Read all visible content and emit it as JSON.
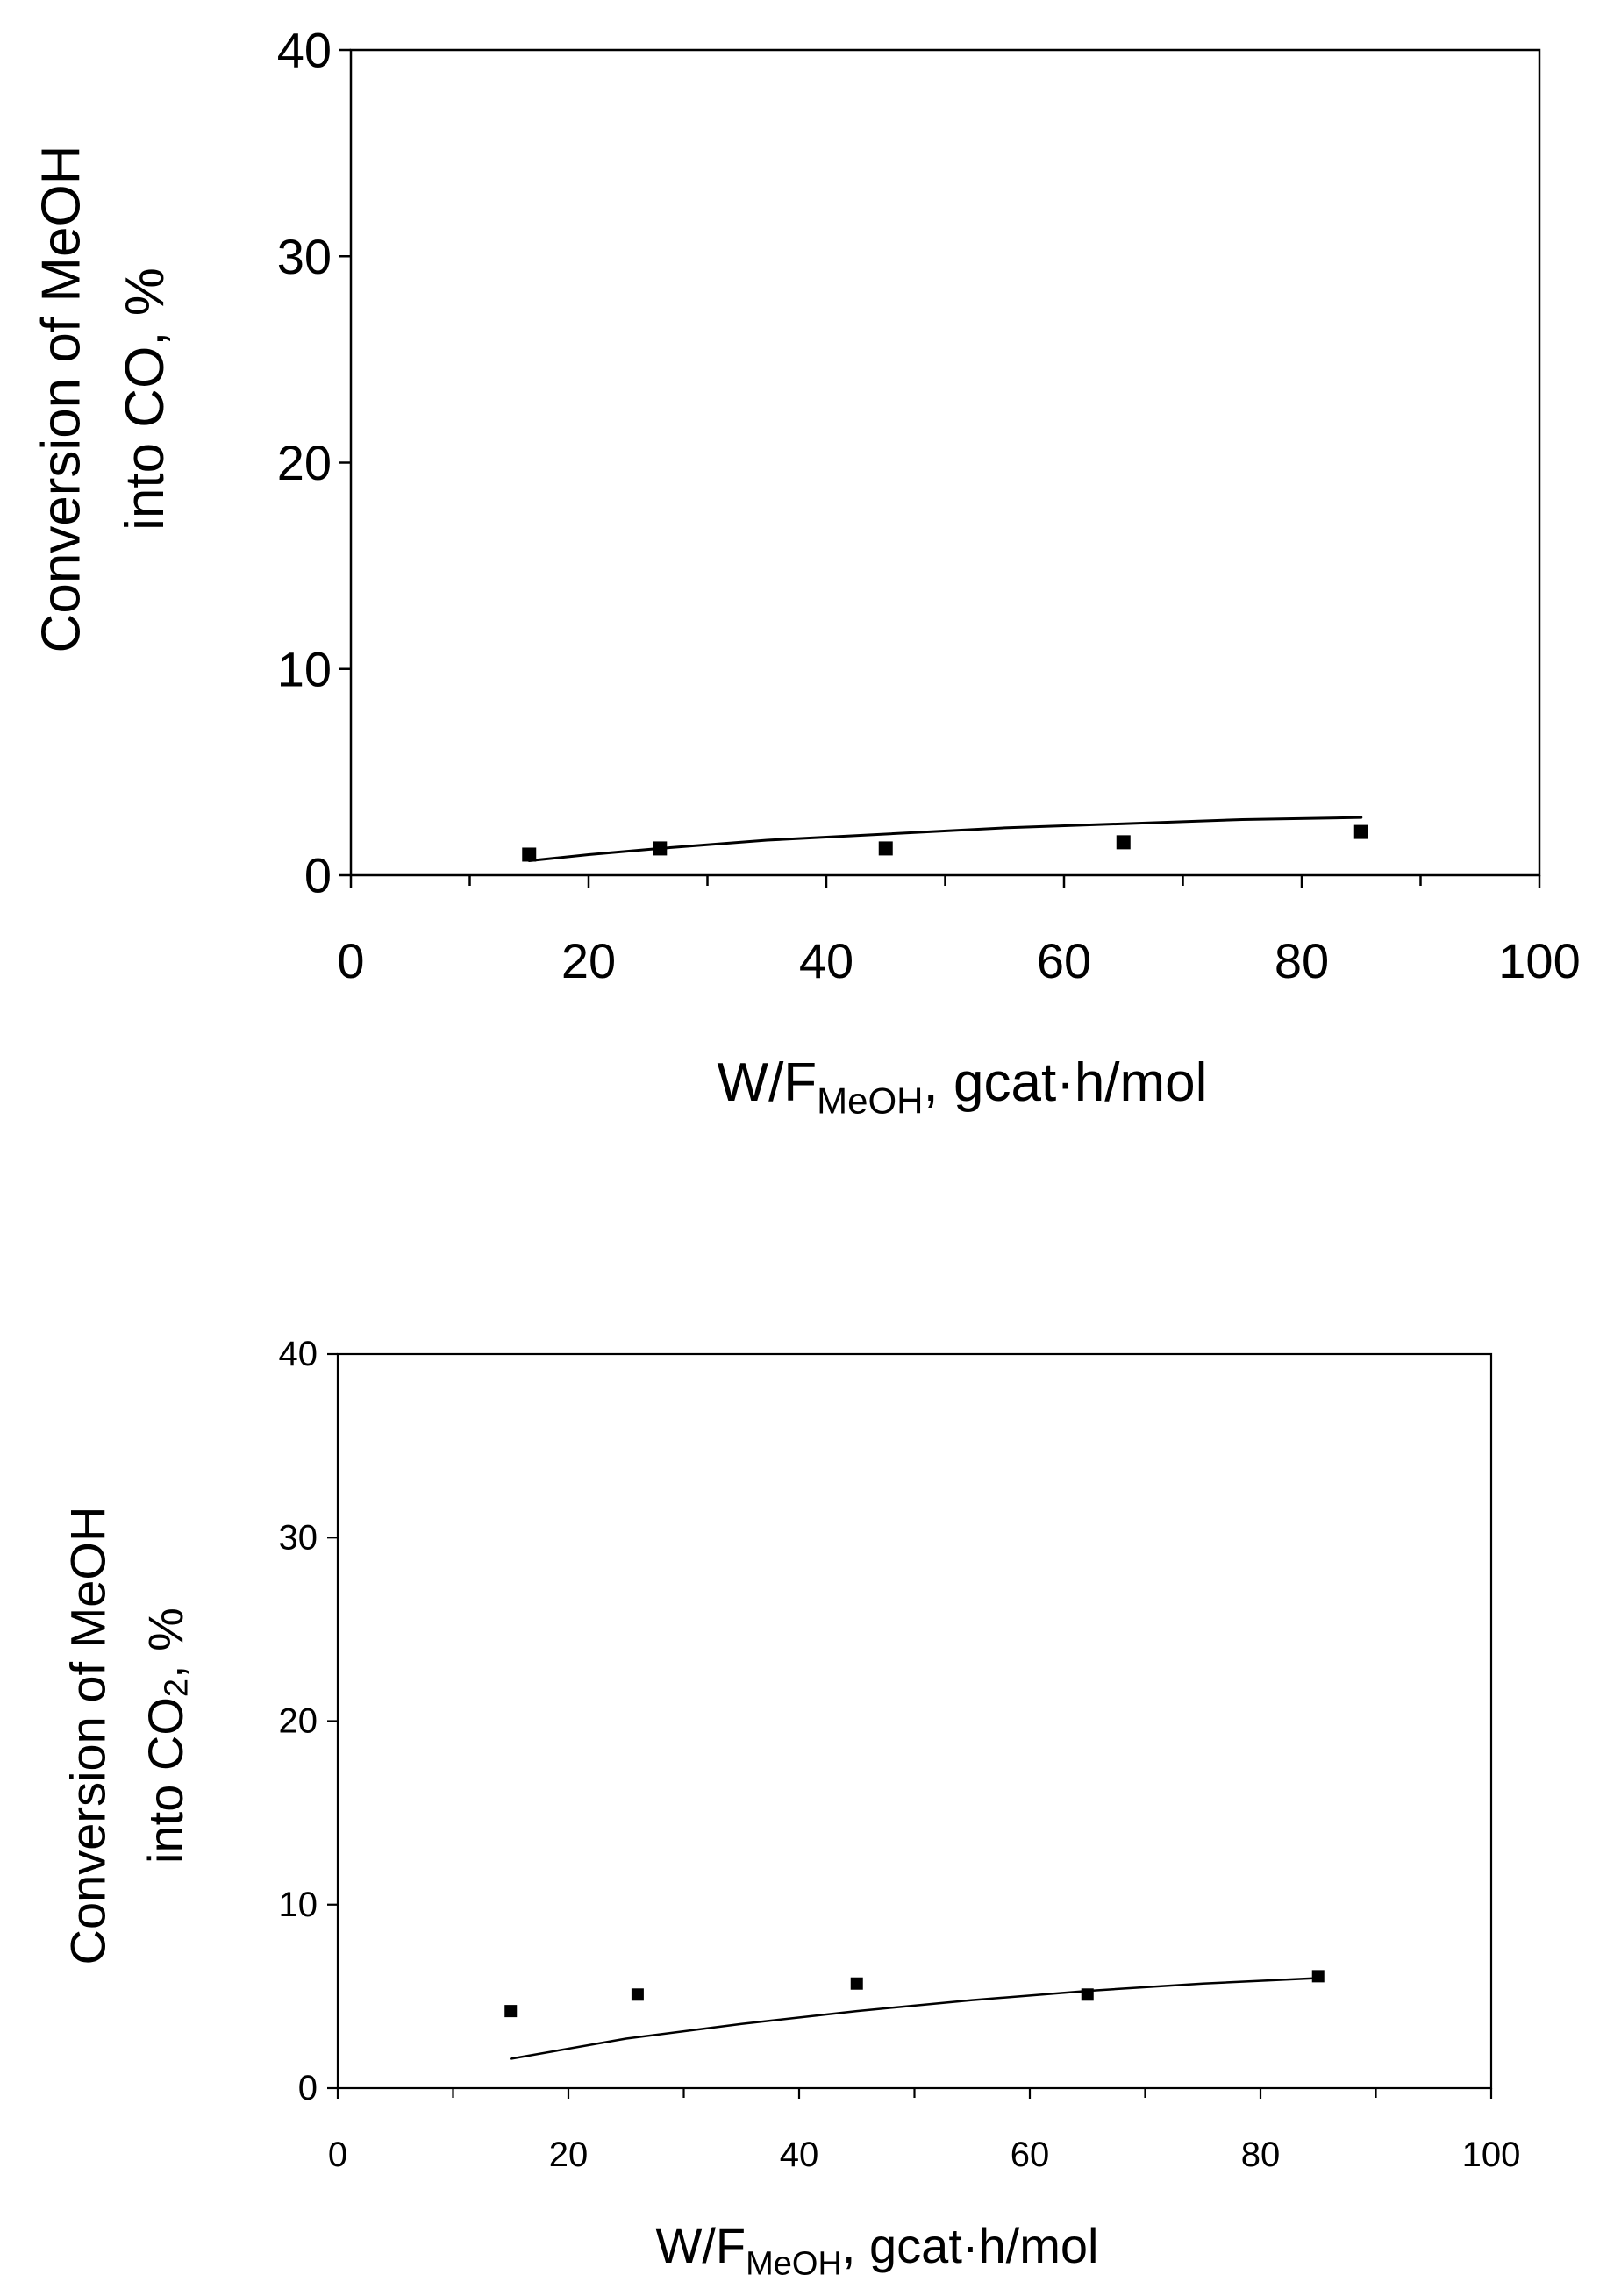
{
  "chart_data": [
    {
      "type": "scatter",
      "title": "",
      "xlabel_main": "W/F",
      "xlabel_sub": "MeOH",
      "xlabel_rest": ", gcat·h/mol",
      "ylabel_line1": "Conversion of MeOH",
      "ylabel_line2_main": "into CO",
      "ylabel_line2_sub": "",
      "ylabel_line2_rest": ", %",
      "xlim": [
        0,
        100
      ],
      "ylim": [
        0,
        40
      ],
      "xticks": [
        0,
        20,
        40,
        60,
        80,
        100
      ],
      "yticks": [
        0,
        10,
        20,
        30,
        40
      ],
      "x_minor_step": 10,
      "grid": false,
      "series": [
        {
          "kind": "points",
          "marker": "square",
          "x": [
            15,
            26,
            45,
            65,
            85
          ],
          "y": [
            1.0,
            1.3,
            1.3,
            1.6,
            2.1
          ]
        },
        {
          "kind": "line",
          "x": [
            15,
            20,
            26,
            35,
            45,
            55,
            65,
            75,
            85
          ],
          "y": [
            0.7,
            1.0,
            1.3,
            1.7,
            2.0,
            2.3,
            2.5,
            2.7,
            2.8
          ]
        }
      ]
    },
    {
      "type": "scatter",
      "title": "",
      "xlabel_main": "W/F",
      "xlabel_sub": "MeOH",
      "xlabel_rest": ", gcat·h/mol",
      "ylabel_line1": "Conversion of MeOH",
      "ylabel_line2_main": "into CO",
      "ylabel_line2_sub": "2",
      "ylabel_line2_rest": ", %",
      "xlim": [
        0,
        100
      ],
      "ylim": [
        0,
        40
      ],
      "xticks": [
        0,
        20,
        40,
        60,
        80,
        100
      ],
      "yticks": [
        0,
        10,
        20,
        30,
        40
      ],
      "x_minor_step": 10,
      "grid": false,
      "series": [
        {
          "kind": "points",
          "marker": "square",
          "x": [
            15,
            26,
            45,
            65,
            85
          ],
          "y": [
            4.2,
            5.1,
            5.7,
            5.1,
            6.1
          ]
        },
        {
          "kind": "line",
          "x": [
            15,
            25,
            35,
            45,
            55,
            65,
            75,
            85
          ],
          "y": [
            1.6,
            2.7,
            3.5,
            4.2,
            4.8,
            5.3,
            5.7,
            6.0
          ]
        }
      ]
    }
  ]
}
